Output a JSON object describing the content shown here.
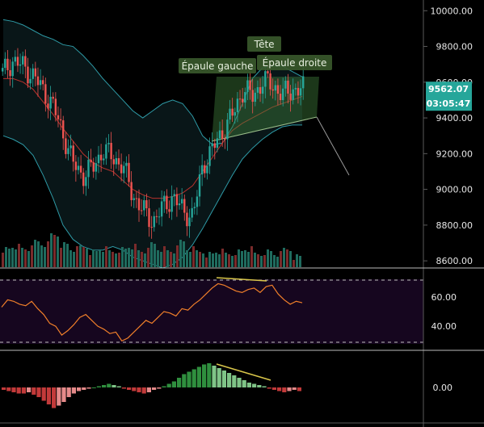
{
  "chart_data": [
    {
      "type": "candlestick",
      "panel": "price",
      "ylim": [
        8560,
        10060
      ],
      "y_ticks": [
        "10000.00",
        "9800.00",
        "9600.00",
        "9400.00",
        "9200.00",
        "9000.00",
        "8800.00",
        "8600.00"
      ],
      "y_tick_values": [
        10000,
        9800,
        9600,
        9400,
        9200,
        9000,
        8800,
        8600
      ],
      "last_price": "9562.07",
      "countdown": "03:05:47",
      "annotations": [
        {
          "text": "Épaule gauche"
        },
        {
          "text": "Tête"
        },
        {
          "text": "Épaule droite"
        }
      ],
      "bollinger": {
        "upper": [
          9950,
          9940,
          9920,
          9890,
          9860,
          9840,
          9810,
          9800,
          9750,
          9690,
          9620,
          9560,
          9500,
          9440,
          9400,
          9440,
          9480,
          9500,
          9480,
          9410,
          9300,
          9250,
          9260,
          9350,
          9480,
          9620,
          9680,
          9690,
          9690,
          9660,
          9630
        ],
        "basis": [
          9620,
          9620,
          9600,
          9560,
          9490,
          9420,
          9340,
          9270,
          9200,
          9150,
          9120,
          9100,
          9050,
          9000,
          8970,
          8950,
          8950,
          8960,
          8980,
          9020,
          9100,
          9180,
          9260,
          9330,
          9370,
          9400,
          9430,
          9460,
          9480,
          9500,
          9520
        ],
        "lower": [
          9300,
          9280,
          9250,
          9190,
          9080,
          8950,
          8800,
          8720,
          8680,
          8660,
          8660,
          8680,
          8660,
          8620,
          8600,
          8580,
          8560,
          8580,
          8620,
          8690,
          8780,
          8880,
          8980,
          9080,
          9170,
          9230,
          9280,
          9320,
          9350,
          9360,
          9360
        ]
      },
      "candles_sampled": [
        9650,
        9720,
        9690,
        9640,
        9560,
        9470,
        9320,
        9150,
        9080,
        9120,
        9220,
        9180,
        9130,
        8970,
        8880,
        8820,
        8900,
        8960,
        8880,
        8850,
        9140,
        9230,
        9330,
        9420,
        9560,
        9520,
        9610,
        9580,
        9530,
        9560,
        9562
      ],
      "volume_sampled": [
        6,
        7,
        6,
        9,
        8,
        12,
        8,
        6,
        7,
        5,
        6,
        5,
        6,
        7,
        5,
        8,
        6,
        5,
        9,
        6,
        5,
        4,
        5,
        4,
        5,
        6,
        4,
        5,
        4,
        6,
        3
      ],
      "projection": {
        "from": 9420,
        "to": 9080
      }
    },
    {
      "type": "line",
      "panel": "rsi",
      "ylim": [
        28,
        72
      ],
      "y_ticks": [
        "60.00",
        "40.00"
      ],
      "y_tick_values": [
        60,
        40
      ],
      "band": [
        32,
        70
      ],
      "values": [
        53,
        58,
        57,
        55,
        54,
        57,
        52,
        48,
        42,
        40,
        34,
        37,
        41,
        46,
        48,
        44,
        40,
        38,
        35,
        36,
        30,
        32,
        36,
        40,
        44,
        42,
        46,
        50,
        49,
        47,
        52,
        51,
        55,
        58,
        62,
        66,
        69,
        68,
        66,
        64,
        63,
        65,
        66,
        63,
        67,
        68,
        62,
        58,
        55,
        57,
        56
      ]
    },
    {
      "type": "bar",
      "panel": "macd",
      "ylim": [
        -30,
        40
      ],
      "y_ticks": [
        "0.00"
      ],
      "y_tick_values": [
        0
      ],
      "values": [
        -2,
        -3,
        -4,
        -5,
        -5,
        -4,
        -6,
        -8,
        -11,
        -14,
        -17,
        -15,
        -12,
        -8,
        -5,
        -3,
        -2,
        -1,
        0,
        1,
        2,
        3,
        2,
        1,
        -1,
        -2,
        -3,
        -4,
        -5,
        -4,
        -2,
        -1,
        1,
        3,
        5,
        8,
        11,
        13,
        15,
        17,
        19,
        20,
        18,
        16,
        14,
        12,
        10,
        8,
        6,
        4,
        3,
        2,
        1,
        -1,
        -2,
        -3,
        -4,
        -3,
        -2,
        -3
      ]
    }
  ]
}
